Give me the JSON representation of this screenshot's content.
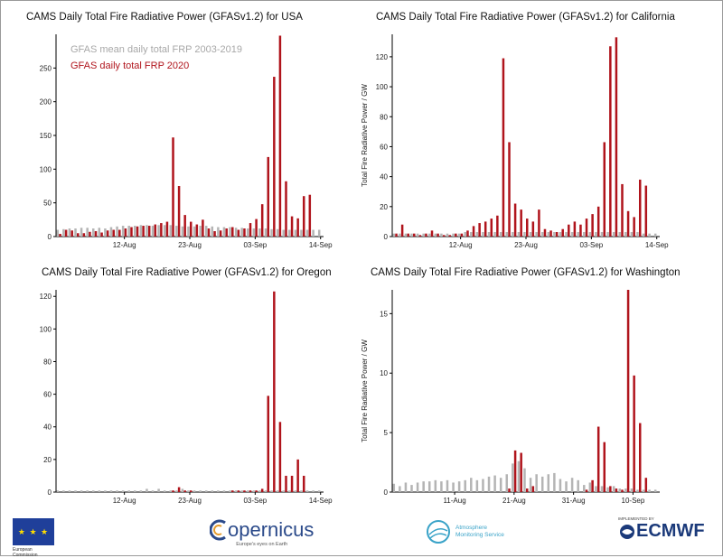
{
  "chart_data": [
    {
      "type": "bar",
      "title": "CAMS  Daily Total Fire Radiative Power (GFASv1.2)  for USA",
      "ylabel": "",
      "ylim": [
        0,
        300
      ],
      "yticks": [
        0,
        50,
        100,
        150,
        200,
        250
      ],
      "xtick_labels": [
        {
          "day": 12,
          "label": "12-Aug"
        },
        {
          "day": 23,
          "label": "23-Aug"
        },
        {
          "day": 34,
          "label": "03-Sep"
        },
        {
          "day": 45,
          "label": "14-Sep"
        }
      ],
      "grid": false,
      "legend": "top-left",
      "series": [
        {
          "name": "GFAS  mean daily total FRP 2003-2019",
          "color": "#b4b4b4",
          "values": [
            10,
            11,
            12,
            12,
            13,
            13,
            12,
            13,
            12,
            14,
            15,
            16,
            16,
            16,
            17,
            17,
            16,
            17,
            17,
            17,
            16,
            15,
            15,
            15,
            16,
            16,
            15,
            14,
            14,
            14,
            13,
            13,
            12,
            12,
            12,
            12,
            11,
            11,
            10,
            10,
            10,
            10,
            10,
            10,
            10
          ]
        },
        {
          "name": "GFAS  daily total FRP 2020",
          "color": "#b0141c",
          "values": [
            4,
            10,
            9,
            5,
            5,
            7,
            8,
            6,
            9,
            10,
            10,
            12,
            14,
            15,
            16,
            16,
            18,
            20,
            22,
            147,
            75,
            32,
            22,
            18,
            25,
            12,
            8,
            9,
            12,
            14,
            10,
            12,
            20,
            26,
            48,
            118,
            237,
            298,
            82,
            30,
            27,
            60,
            62,
            0,
            0
          ]
        }
      ]
    },
    {
      "type": "bar",
      "title": "CAMS  Daily Total Fire Radiative Power (GFASv1.2)  for California",
      "ylabel": "Total Fire Radiative Power / GW",
      "ylim": [
        0,
        135
      ],
      "yticks": [
        0,
        20,
        40,
        60,
        80,
        100,
        120
      ],
      "xtick_labels": [
        {
          "day": 12,
          "label": "12-Aug"
        },
        {
          "day": 23,
          "label": "23-Aug"
        },
        {
          "day": 34,
          "label": "03-Sep"
        },
        {
          "day": 45,
          "label": "14-Sep"
        }
      ],
      "grid": false,
      "legend": "none",
      "series": [
        {
          "name": "",
          "color": "#b4b4b4",
          "values": [
            2,
            2,
            2,
            2,
            2,
            2,
            2,
            2,
            2,
            2,
            2,
            2,
            3,
            3,
            3,
            3,
            3,
            3,
            3,
            3,
            3,
            3,
            3,
            3,
            3,
            3,
            3,
            3,
            3,
            3,
            3,
            3,
            3,
            3,
            3,
            3,
            3,
            3,
            3,
            3,
            3,
            3,
            2,
            2,
            2
          ]
        },
        {
          "name": "",
          "color": "#b0141c",
          "values": [
            2,
            8,
            2,
            2,
            1,
            2,
            4,
            2,
            1,
            1,
            2,
            2,
            4,
            7,
            9,
            10,
            12,
            14,
            119,
            63,
            22,
            18,
            12,
            10,
            18,
            5,
            4,
            3,
            5,
            8,
            10,
            8,
            12,
            15,
            20,
            63,
            127,
            133,
            35,
            17,
            13,
            38,
            34,
            0,
            0
          ]
        }
      ]
    },
    {
      "type": "bar",
      "title": "CAMS  Daily Total Fire Radiative Power (GFASv1.2)  for Oregon",
      "ylabel": "",
      "ylim": [
        0,
        124
      ],
      "yticks": [
        0,
        20,
        40,
        60,
        80,
        100,
        120
      ],
      "xtick_labels": [
        {
          "day": 12,
          "label": "12-Aug"
        },
        {
          "day": 23,
          "label": "23-Aug"
        },
        {
          "day": 34,
          "label": "03-Sep"
        },
        {
          "day": 45,
          "label": "14-Sep"
        }
      ],
      "grid": false,
      "legend": "none",
      "series": [
        {
          "name": "",
          "color": "#b4b4b4",
          "values": [
            1,
            1,
            1,
            1,
            1,
            1,
            1,
            1,
            1,
            1,
            1,
            1,
            1,
            1,
            1,
            2,
            1,
            2,
            1,
            1,
            1,
            2,
            1,
            1,
            1,
            1,
            1,
            1,
            1,
            1,
            1,
            1,
            1,
            1,
            1,
            1,
            1,
            1,
            1,
            1,
            1,
            1,
            1,
            1,
            1
          ]
        },
        {
          "name": "",
          "color": "#b0141c",
          "values": [
            0,
            0,
            0,
            0,
            0,
            0,
            0,
            0,
            0,
            0,
            0,
            0,
            0,
            0,
            0,
            0,
            0,
            0,
            0,
            1,
            3,
            1,
            1,
            0,
            0,
            0,
            0,
            0,
            0,
            1,
            1,
            1,
            1,
            1,
            2,
            59,
            123,
            43,
            10,
            10,
            20,
            10,
            0,
            0,
            0
          ]
        }
      ]
    },
    {
      "type": "bar",
      "title": "CAMS  Daily Total Fire Radiative Power (GFASv1.2)  for Washington",
      "ylabel": "Total Fire Radiative Power / GW",
      "ylim": [
        0,
        17
      ],
      "yticks": [
        0,
        5,
        10,
        15
      ],
      "xtick_labels": [
        {
          "day": 11,
          "label": "11-Aug"
        },
        {
          "day": 21,
          "label": "21-Aug"
        },
        {
          "day": 31,
          "label": "31-Aug"
        },
        {
          "day": 41,
          "label": "10-Sep"
        }
      ],
      "grid": false,
      "legend": "none",
      "series": [
        {
          "name": "",
          "color": "#b4b4b4",
          "values": [
            0.7,
            0.5,
            0.8,
            0.6,
            0.8,
            0.9,
            0.9,
            1.0,
            0.9,
            1.0,
            0.8,
            0.9,
            1.0,
            1.2,
            1.0,
            1.1,
            1.3,
            1.4,
            1.2,
            1.5,
            2.4,
            2.6,
            2.0,
            1.2,
            1.5,
            1.3,
            1.5,
            1.6,
            1.1,
            0.9,
            1.2,
            1.0,
            0.6,
            0.8,
            0.5,
            0.5,
            0.4,
            0.5,
            0.3,
            0.3,
            0.3,
            0.2,
            0.2,
            0.2,
            0.2
          ]
        },
        {
          "name": "",
          "color": "#b0141c",
          "values": [
            0,
            0,
            0,
            0,
            0,
            0,
            0,
            0,
            0,
            0,
            0,
            0,
            0,
            0,
            0,
            0,
            0,
            0,
            0,
            0.3,
            3.5,
            3.3,
            0.3,
            0.5,
            0,
            0,
            0,
            0,
            0,
            0,
            0,
            0,
            0.2,
            1.0,
            5.5,
            4.2,
            0.5,
            0.3,
            0.2,
            17.0,
            9.8,
            5.8,
            1.2,
            0,
            0
          ]
        }
      ]
    }
  ],
  "footer": {
    "eu": {
      "text": "European Commission"
    },
    "copernicus": {
      "word": "opernicus",
      "sub": "Europe's eyes on Earth"
    },
    "cams": {
      "line1": "Atmosphere",
      "line2": "Monitoring Service"
    },
    "ecmwf": {
      "small": "IMPLEMENTED BY",
      "word": "ECMWF"
    }
  }
}
